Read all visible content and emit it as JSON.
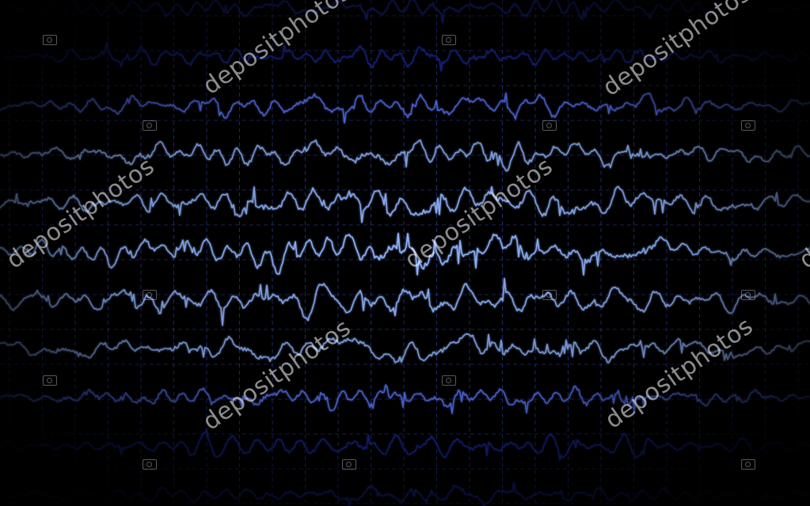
{
  "watermark": {
    "text": "depositphotos",
    "icon": "camera-icon"
  },
  "colors": {
    "background": "#000000",
    "grid": "#3f56d6",
    "trace_center": "#8fb4ff",
    "trace_mid": "#5a78ff",
    "trace_edge": "#1e2fb0"
  },
  "traces": {
    "count": 11
  }
}
